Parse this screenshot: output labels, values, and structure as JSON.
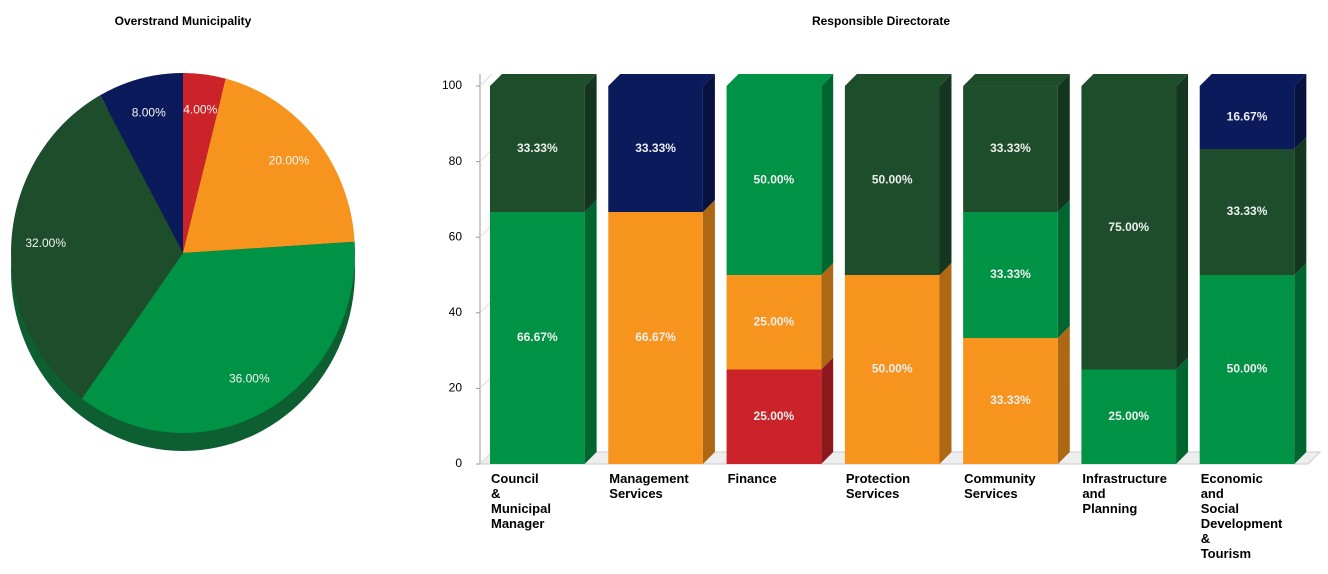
{
  "chart_data": [
    {
      "type": "pie",
      "title": "Overstrand Municipality",
      "values": [
        4,
        20,
        36,
        32,
        8
      ],
      "value_labels": [
        "4.00%",
        "20.00%",
        "36.00%",
        "32.00%",
        "8.00%"
      ],
      "colors": [
        "#cc2229",
        "#f7941d",
        "#009245",
        "#1e4d2b",
        "#0b1a5a"
      ]
    },
    {
      "type": "stacked_bar",
      "title": "Responsible Directorate",
      "categories": [
        "Council\n&\nMunicipal\nManager",
        "Management\nServices",
        "Finance",
        "Protection\nServices",
        "Community\nServices",
        "Infrastructure\nand\nPlanning",
        "Economic\nand\nSocial\nDevelopment\n&\nTourism"
      ],
      "series": [
        {
          "color": "#cc2229",
          "values": [
            null,
            null,
            25,
            null,
            null,
            null,
            null
          ],
          "value_labels": [
            null,
            null,
            "25.00%",
            null,
            null,
            null,
            null
          ]
        },
        {
          "color": "#f7941d",
          "values": [
            null,
            66.67,
            25,
            50,
            33.33,
            null,
            null
          ],
          "value_labels": [
            null,
            "66.67%",
            "25.00%",
            "50.00%",
            "33.33%",
            null,
            null
          ]
        },
        {
          "color": "#009245",
          "values": [
            66.67,
            null,
            50,
            null,
            33.33,
            25,
            50
          ],
          "value_labels": [
            "66.67%",
            null,
            "50.00%",
            null,
            "33.33%",
            "25.00%",
            "50.00%"
          ]
        },
        {
          "color": "#1e4d2b",
          "values": [
            33.33,
            null,
            null,
            50,
            33.33,
            75,
            33.33
          ],
          "value_labels": [
            "33.33%",
            null,
            null,
            "50.00%",
            "33.33%",
            "75.00%",
            "33.33%"
          ]
        },
        {
          "color": "#0b1a5a",
          "values": [
            null,
            33.33,
            null,
            null,
            null,
            null,
            16.67
          ],
          "value_labels": [
            null,
            "33.33%",
            null,
            null,
            null,
            null,
            "16.67%"
          ]
        }
      ],
      "ylim": [
        0,
        100
      ],
      "yticks": [
        0,
        20,
        40,
        60,
        80,
        100
      ]
    }
  ]
}
